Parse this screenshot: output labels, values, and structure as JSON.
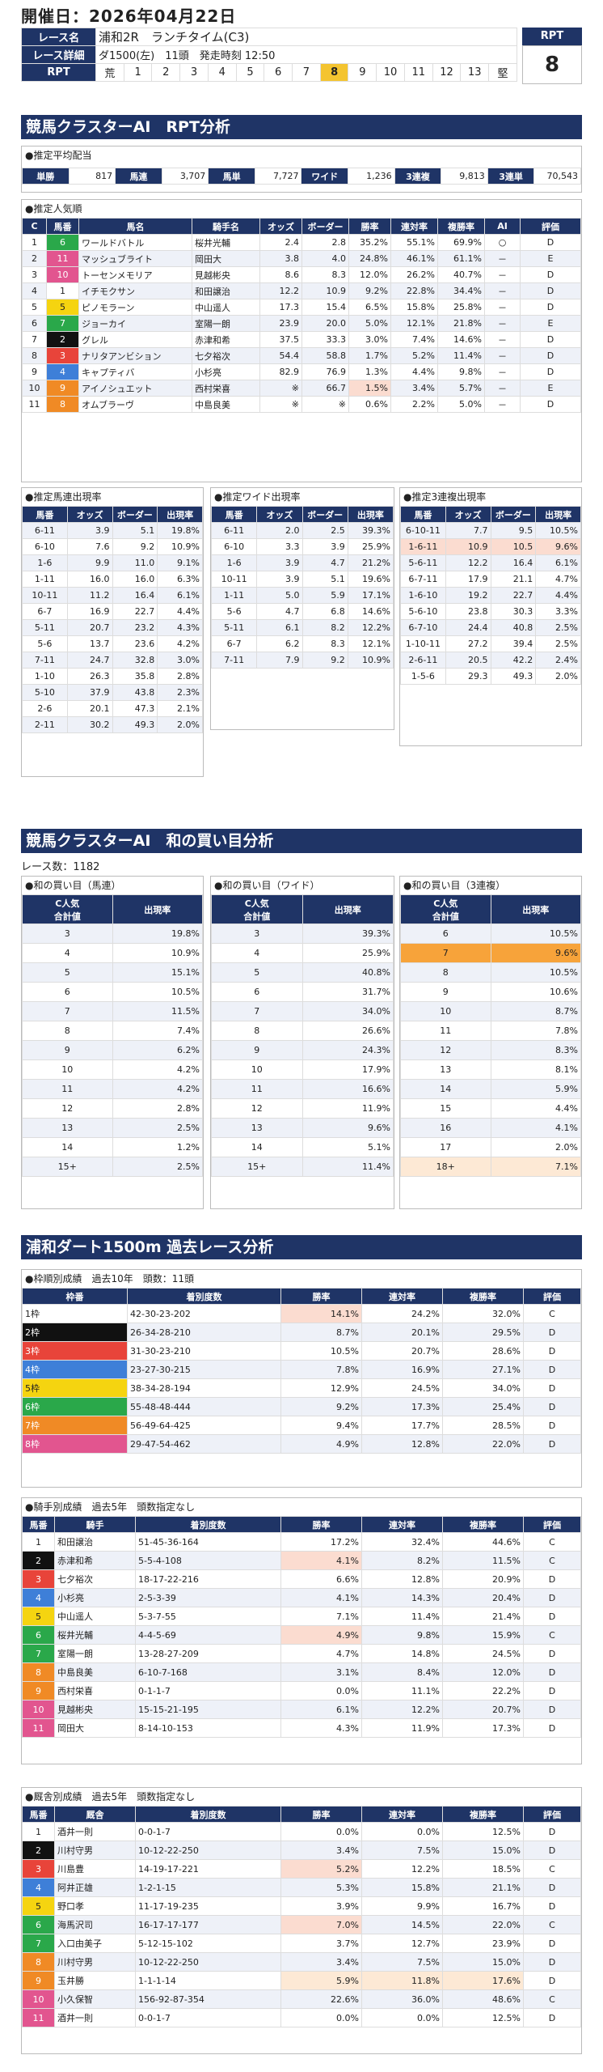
{
  "header": {
    "date": "開催日：2026年04月22日"
  },
  "race": {
    "name_label": "レース名",
    "name": "浦和2R　ランチタイム(C3)",
    "detail_label": "レース詳細",
    "detail": "ダ1500(左)　11頭　発走時刻 12:50",
    "rpt_label": "RPT",
    "rpt_scale": [
      "荒",
      "1",
      "2",
      "3",
      "4",
      "5",
      "6",
      "7",
      "8",
      "9",
      "10",
      "11",
      "12",
      "13",
      "堅"
    ],
    "rpt_active": "8",
    "rpt_value": "8"
  },
  "sec1": {
    "title": "競馬クラスターAI　RPT分析"
  },
  "payout": {
    "caption": "●推定平均配当",
    "items": [
      {
        "label": "単勝",
        "value": "817"
      },
      {
        "label": "馬連",
        "value": "3,707"
      },
      {
        "label": "馬単",
        "value": "7,727"
      },
      {
        "label": "ワイド",
        "value": "1,236"
      },
      {
        "label": "3連複",
        "value": "9,813"
      },
      {
        "label": "3連単",
        "value": "70,543"
      }
    ]
  },
  "pop": {
    "caption": "●推定人気順",
    "headers": [
      "C",
      "馬番",
      "馬名",
      "騎手名",
      "オッズ",
      "ボーダー",
      "勝率",
      "連対率",
      "複勝率",
      "AI",
      "評価"
    ],
    "rows": [
      [
        "1",
        "6",
        "ワールドバトル",
        "桜井光輔",
        "2.4",
        "2.8",
        "35.2%",
        "55.1%",
        "69.9%",
        "○",
        "D"
      ],
      [
        "2",
        "11",
        "マッシュブライト",
        "岡田大",
        "3.8",
        "4.0",
        "24.8%",
        "46.1%",
        "61.1%",
        "－",
        "E"
      ],
      [
        "3",
        "10",
        "トーセンメモリア",
        "見越彬央",
        "8.6",
        "8.3",
        "12.0%",
        "26.2%",
        "40.7%",
        "－",
        "D"
      ],
      [
        "4",
        "1",
        "イチモクサン",
        "和田譲治",
        "12.2",
        "10.9",
        "9.2%",
        "22.8%",
        "34.4%",
        "－",
        "D"
      ],
      [
        "5",
        "5",
        "ピノモラーン",
        "中山遥人",
        "17.3",
        "15.4",
        "6.5%",
        "15.8%",
        "25.8%",
        "－",
        "D"
      ],
      [
        "6",
        "7",
        "ジョーカイ",
        "室陽一朗",
        "23.9",
        "20.0",
        "5.0%",
        "12.1%",
        "21.8%",
        "－",
        "E"
      ],
      [
        "7",
        "2",
        "グレル",
        "赤津和希",
        "37.5",
        "33.3",
        "3.0%",
        "7.4%",
        "14.6%",
        "－",
        "D"
      ],
      [
        "8",
        "3",
        "ナリタアンビション",
        "七夕裕次",
        "54.4",
        "58.8",
        "1.7%",
        "5.2%",
        "11.4%",
        "－",
        "D"
      ],
      [
        "9",
        "4",
        "キャプティバ",
        "小杉亮",
        "82.9",
        "76.9",
        "1.3%",
        "4.4%",
        "9.8%",
        "－",
        "D"
      ],
      [
        "10",
        "9",
        "アイノシュエット",
        "西村栄喜",
        "※",
        "66.7",
        "1.5%",
        "3.4%",
        "5.7%",
        "－",
        "E"
      ],
      [
        "11",
        "8",
        "オムブラーヴ",
        "中島良美",
        "※",
        "※",
        "0.6%",
        "2.2%",
        "5.0%",
        "－",
        "D"
      ]
    ]
  },
  "quin": {
    "caption": "●推定馬連出現率",
    "headers": [
      "馬番",
      "オッズ",
      "ボーダー",
      "出現率"
    ],
    "rows": [
      [
        "6-11",
        "3.9",
        "5.1",
        "19.8%"
      ],
      [
        "6-10",
        "7.6",
        "9.2",
        "10.9%"
      ],
      [
        "1-6",
        "9.9",
        "11.0",
        "9.1%"
      ],
      [
        "1-11",
        "16.0",
        "16.0",
        "6.3%"
      ],
      [
        "10-11",
        "11.2",
        "16.4",
        "6.1%"
      ],
      [
        "6-7",
        "16.9",
        "22.7",
        "4.4%"
      ],
      [
        "5-11",
        "20.7",
        "23.2",
        "4.3%"
      ],
      [
        "5-6",
        "13.7",
        "23.6",
        "4.2%"
      ],
      [
        "7-11",
        "24.7",
        "32.8",
        "3.0%"
      ],
      [
        "1-10",
        "26.3",
        "35.8",
        "2.8%"
      ],
      [
        "5-10",
        "37.9",
        "43.8",
        "2.3%"
      ],
      [
        "2-6",
        "20.1",
        "47.3",
        "2.1%"
      ],
      [
        "2-11",
        "30.2",
        "49.3",
        "2.0%"
      ]
    ]
  },
  "wide": {
    "caption": "●推定ワイド出現率",
    "headers": [
      "馬番",
      "オッズ",
      "ボーダー",
      "出現率"
    ],
    "rows": [
      [
        "6-11",
        "2.0",
        "2.5",
        "39.3%"
      ],
      [
        "6-10",
        "3.3",
        "3.9",
        "25.9%"
      ],
      [
        "1-6",
        "3.9",
        "4.7",
        "21.2%"
      ],
      [
        "10-11",
        "3.9",
        "5.1",
        "19.6%"
      ],
      [
        "1-11",
        "5.0",
        "5.9",
        "17.1%"
      ],
      [
        "5-6",
        "4.7",
        "6.8",
        "14.6%"
      ],
      [
        "5-11",
        "6.1",
        "8.2",
        "12.2%"
      ],
      [
        "6-7",
        "6.2",
        "8.3",
        "12.1%"
      ],
      [
        "7-11",
        "7.9",
        "9.2",
        "10.9%"
      ]
    ]
  },
  "trio": {
    "caption": "●推定3連複出現率",
    "headers": [
      "馬番",
      "オッズ",
      "ボーダー",
      "出現率"
    ],
    "rows": [
      [
        "6-10-11",
        "7.7",
        "9.5",
        "10.5%"
      ],
      [
        "1-6-11",
        "10.9",
        "10.5",
        "9.6%"
      ],
      [
        "5-6-11",
        "12.2",
        "16.4",
        "6.1%"
      ],
      [
        "6-7-11",
        "17.9",
        "21.1",
        "4.7%"
      ],
      [
        "1-6-10",
        "19.2",
        "22.7",
        "4.4%"
      ],
      [
        "5-6-10",
        "23.8",
        "30.3",
        "3.3%"
      ],
      [
        "6-7-10",
        "24.4",
        "40.8",
        "2.5%"
      ],
      [
        "1-10-11",
        "27.2",
        "39.4",
        "2.5%"
      ],
      [
        "2-6-11",
        "20.5",
        "42.2",
        "2.4%"
      ],
      [
        "1-5-6",
        "29.3",
        "49.3",
        "2.0%"
      ]
    ]
  },
  "sec2": {
    "title": "競馬クラスターAI　和の買い目分析",
    "race_count": "レース数：1182"
  },
  "wa_quin": {
    "caption": "●和の買い目（馬連）",
    "headers": [
      "C人気\n合計値",
      "出現率"
    ],
    "rows": [
      [
        "3",
        "19.8%"
      ],
      [
        "4",
        "10.9%"
      ],
      [
        "5",
        "15.1%"
      ],
      [
        "6",
        "10.5%"
      ],
      [
        "7",
        "11.5%"
      ],
      [
        "8",
        "7.4%"
      ],
      [
        "9",
        "6.2%"
      ],
      [
        "10",
        "4.2%"
      ],
      [
        "11",
        "4.2%"
      ],
      [
        "12",
        "2.8%"
      ],
      [
        "13",
        "2.5%"
      ],
      [
        "14",
        "1.2%"
      ],
      [
        "15+",
        "2.5%"
      ]
    ]
  },
  "wa_wide": {
    "caption": "●和の買い目（ワイド）",
    "headers": [
      "C人気\n合計値",
      "出現率"
    ],
    "rows": [
      [
        "3",
        "39.3%"
      ],
      [
        "4",
        "25.9%"
      ],
      [
        "5",
        "40.8%"
      ],
      [
        "6",
        "31.7%"
      ],
      [
        "7",
        "34.0%"
      ],
      [
        "8",
        "26.6%"
      ],
      [
        "9",
        "24.3%"
      ],
      [
        "10",
        "17.9%"
      ],
      [
        "11",
        "16.6%"
      ],
      [
        "12",
        "11.9%"
      ],
      [
        "13",
        "9.6%"
      ],
      [
        "14",
        "5.1%"
      ],
      [
        "15+",
        "11.4%"
      ]
    ]
  },
  "wa_trio": {
    "caption": "●和の買い目（3連複）",
    "headers": [
      "C人気\n合計値",
      "出現率"
    ],
    "rows": [
      [
        "6",
        "10.5%"
      ],
      [
        "7",
        "9.6%"
      ],
      [
        "8",
        "10.5%"
      ],
      [
        "9",
        "10.6%"
      ],
      [
        "10",
        "8.7%"
      ],
      [
        "11",
        "7.8%"
      ],
      [
        "12",
        "8.3%"
      ],
      [
        "13",
        "8.1%"
      ],
      [
        "14",
        "5.9%"
      ],
      [
        "15",
        "4.4%"
      ],
      [
        "16",
        "4.1%"
      ],
      [
        "17",
        "2.0%"
      ],
      [
        "18+",
        "7.1%"
      ]
    ]
  },
  "sec3": {
    "title": "浦和ダート1500m 過去レース分析"
  },
  "gate": {
    "caption": "●枠順別成績　過去10年　頭数：11頭",
    "headers": [
      "枠番",
      "着別度数",
      "勝率",
      "連対率",
      "複勝率",
      "評価"
    ],
    "rows": [
      [
        "1枠",
        "42-30-23-202",
        "14.1%",
        "24.2%",
        "32.0%",
        "C"
      ],
      [
        "2枠",
        "26-34-28-210",
        "8.7%",
        "20.1%",
        "29.5%",
        "D"
      ],
      [
        "3枠",
        "31-30-23-210",
        "10.5%",
        "20.7%",
        "28.6%",
        "D"
      ],
      [
        "4枠",
        "23-27-30-215",
        "7.8%",
        "16.9%",
        "27.1%",
        "D"
      ],
      [
        "5枠",
        "38-34-28-194",
        "12.9%",
        "24.5%",
        "34.0%",
        "D"
      ],
      [
        "6枠",
        "55-48-48-444",
        "9.2%",
        "17.3%",
        "25.4%",
        "D"
      ],
      [
        "7枠",
        "56-49-64-425",
        "9.4%",
        "17.7%",
        "28.5%",
        "D"
      ],
      [
        "8枠",
        "29-47-54-462",
        "4.9%",
        "12.8%",
        "22.0%",
        "D"
      ]
    ]
  },
  "jockey": {
    "caption": "●騎手別成績　過去5年　頭数指定なし",
    "headers": [
      "馬番",
      "騎手",
      "着別度数",
      "勝率",
      "連対率",
      "複勝率",
      "評価"
    ],
    "rows": [
      [
        "1",
        "和田譲治",
        "51-45-36-164",
        "17.2%",
        "32.4%",
        "44.6%",
        "C"
      ],
      [
        "2",
        "赤津和希",
        "5-5-4-108",
        "4.1%",
        "8.2%",
        "11.5%",
        "C"
      ],
      [
        "3",
        "七夕裕次",
        "18-17-22-216",
        "6.6%",
        "12.8%",
        "20.9%",
        "D"
      ],
      [
        "4",
        "小杉亮",
        "2-5-3-39",
        "4.1%",
        "14.3%",
        "20.4%",
        "D"
      ],
      [
        "5",
        "中山遥人",
        "5-3-7-55",
        "7.1%",
        "11.4%",
        "21.4%",
        "D"
      ],
      [
        "6",
        "桜井光輔",
        "4-4-5-69",
        "4.9%",
        "9.8%",
        "15.9%",
        "C"
      ],
      [
        "7",
        "室陽一朗",
        "13-28-27-209",
        "4.7%",
        "14.8%",
        "24.5%",
        "D"
      ],
      [
        "8",
        "中島良美",
        "6-10-7-168",
        "3.1%",
        "8.4%",
        "12.0%",
        "D"
      ],
      [
        "9",
        "西村栄喜",
        "0-1-1-7",
        "0.0%",
        "11.1%",
        "22.2%",
        "D"
      ],
      [
        "10",
        "見越彬央",
        "15-15-21-195",
        "6.1%",
        "12.2%",
        "20.7%",
        "D"
      ],
      [
        "11",
        "岡田大",
        "8-14-10-153",
        "4.3%",
        "11.9%",
        "17.3%",
        "D"
      ]
    ]
  },
  "trainer": {
    "caption": "●厩舎別成績　過去5年　頭数指定なし",
    "headers": [
      "馬番",
      "厩舎",
      "着別度数",
      "勝率",
      "連対率",
      "複勝率",
      "評価"
    ],
    "rows": [
      [
        "1",
        "酒井一則",
        "0-0-1-7",
        "0.0%",
        "0.0%",
        "12.5%",
        "D"
      ],
      [
        "2",
        "川村守男",
        "10-12-22-250",
        "3.4%",
        "7.5%",
        "15.0%",
        "D"
      ],
      [
        "3",
        "川島豊",
        "14-19-17-221",
        "5.2%",
        "12.2%",
        "18.5%",
        "C"
      ],
      [
        "4",
        "阿井正雄",
        "1-2-1-15",
        "5.3%",
        "15.8%",
        "21.1%",
        "D"
      ],
      [
        "5",
        "野口孝",
        "11-17-19-235",
        "3.9%",
        "9.9%",
        "16.7%",
        "D"
      ],
      [
        "6",
        "海馬沢司",
        "16-17-17-177",
        "7.0%",
        "14.5%",
        "22.0%",
        "C"
      ],
      [
        "7",
        "入口由美子",
        "5-12-15-102",
        "3.7%",
        "12.7%",
        "23.9%",
        "D"
      ],
      [
        "8",
        "川村守男",
        "10-12-22-250",
        "3.4%",
        "7.5%",
        "15.0%",
        "D"
      ],
      [
        "9",
        "玉井勝",
        "1-1-1-14",
        "5.9%",
        "11.8%",
        "17.6%",
        "D"
      ],
      [
        "10",
        "小久保智",
        "156-92-87-354",
        "22.6%",
        "36.0%",
        "48.6%",
        "C"
      ],
      [
        "11",
        "酒井一則",
        "0-0-1-7",
        "0.0%",
        "0.0%",
        "12.5%",
        "D"
      ]
    ]
  },
  "colors": {
    "navy": "#1f3466",
    "highlight": "#fbdcd0",
    "orange": "#f7a33a",
    "rpt_active": "#f4c430"
  },
  "frame_colors": [
    "#ffffff",
    "#111111",
    "#e8443a",
    "#3e7fd8",
    "#f5d410",
    "#2aa84a",
    "#f08a25",
    "#e2558f"
  ]
}
